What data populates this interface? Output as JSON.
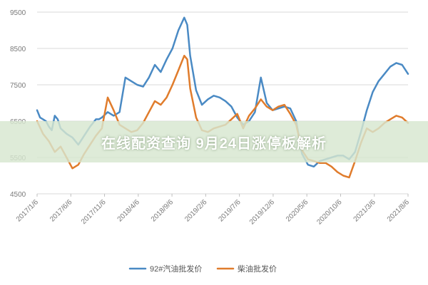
{
  "chart_data": {
    "type": "line",
    "title": "",
    "xlabel": "",
    "ylabel": "",
    "ylim": [
      4500,
      9500
    ],
    "yticks": [
      4500,
      5500,
      6500,
      7500,
      8500,
      9500
    ],
    "xticks": [
      "2017/1/6",
      "2017/6/6",
      "2017/11/6",
      "2018/4/6",
      "2018/9/6",
      "2019/2/6",
      "2019/7/6",
      "2019/12/6",
      "2020/5/6",
      "2020/10/6",
      "2021/3/6",
      "2021/8/6"
    ],
    "grid": true,
    "legend_position": "bottom",
    "x_unit": "months since 2017/1",
    "series": [
      {
        "name": "92#汽油批发价",
        "color": "#4a8ac4",
        "points": [
          [
            0,
            6800
          ],
          [
            0.5,
            6600
          ],
          [
            1,
            6550
          ],
          [
            1.5,
            6500
          ],
          [
            2,
            6350
          ],
          [
            2.5,
            6250
          ],
          [
            3,
            6650
          ],
          [
            3.5,
            6550
          ],
          [
            4,
            6300
          ],
          [
            5,
            6150
          ],
          [
            6,
            6050
          ],
          [
            7,
            5850
          ],
          [
            8,
            6100
          ],
          [
            9,
            6350
          ],
          [
            10,
            6550
          ],
          [
            10.5,
            6550
          ],
          [
            11,
            6600
          ],
          [
            12,
            6750
          ],
          [
            13,
            6650
          ],
          [
            14,
            6750
          ],
          [
            15,
            7700
          ],
          [
            16,
            7600
          ],
          [
            17,
            7500
          ],
          [
            18,
            7450
          ],
          [
            19,
            7700
          ],
          [
            20,
            8050
          ],
          [
            21,
            7850
          ],
          [
            22,
            8200
          ],
          [
            23,
            8500
          ],
          [
            24,
            9000
          ],
          [
            25,
            9350
          ],
          [
            25.5,
            9150
          ],
          [
            26,
            8300
          ],
          [
            27,
            7350
          ],
          [
            28,
            6950
          ],
          [
            29,
            7100
          ],
          [
            30,
            7200
          ],
          [
            31,
            7150
          ],
          [
            32,
            7050
          ],
          [
            33,
            6900
          ],
          [
            34,
            6600
          ],
          [
            35,
            6400
          ],
          [
            36,
            6500
          ],
          [
            37,
            6750
          ],
          [
            38,
            7700
          ],
          [
            39,
            7000
          ],
          [
            40,
            6800
          ],
          [
            41,
            6850
          ],
          [
            42,
            6900
          ],
          [
            43,
            6850
          ],
          [
            44,
            6500
          ],
          [
            45,
            5600
          ],
          [
            46,
            5300
          ],
          [
            47,
            5250
          ],
          [
            48,
            5400
          ],
          [
            49,
            5450
          ],
          [
            50,
            5500
          ],
          [
            51,
            5550
          ],
          [
            52,
            5550
          ],
          [
            53,
            5450
          ],
          [
            54,
            5650
          ],
          [
            55,
            6200
          ],
          [
            56,
            6800
          ],
          [
            57,
            7300
          ],
          [
            58,
            7600
          ],
          [
            59,
            7800
          ],
          [
            60,
            8000
          ],
          [
            61,
            8100
          ],
          [
            62,
            8050
          ],
          [
            63,
            7800
          ]
        ]
      },
      {
        "name": "柴油批发价",
        "color": "#e07c2c",
        "points": [
          [
            0,
            6500
          ],
          [
            1,
            6150
          ],
          [
            2,
            5950
          ],
          [
            3,
            5650
          ],
          [
            4,
            5800
          ],
          [
            5,
            5500
          ],
          [
            6,
            5200
          ],
          [
            7,
            5300
          ],
          [
            8,
            5600
          ],
          [
            9,
            5850
          ],
          [
            10,
            6100
          ],
          [
            11,
            6300
          ],
          [
            12,
            7150
          ],
          [
            13,
            6800
          ],
          [
            14,
            6400
          ],
          [
            15,
            6300
          ],
          [
            16,
            6200
          ],
          [
            17,
            6250
          ],
          [
            18,
            6450
          ],
          [
            19,
            6750
          ],
          [
            20,
            7050
          ],
          [
            21,
            6950
          ],
          [
            22,
            7150
          ],
          [
            23,
            7500
          ],
          [
            24,
            7900
          ],
          [
            25,
            8300
          ],
          [
            25.5,
            8200
          ],
          [
            26,
            7400
          ],
          [
            27,
            6600
          ],
          [
            28,
            6250
          ],
          [
            29,
            6200
          ],
          [
            30,
            6300
          ],
          [
            31,
            6350
          ],
          [
            32,
            6400
          ],
          [
            33,
            6550
          ],
          [
            34,
            6700
          ],
          [
            35,
            6300
          ],
          [
            36,
            6650
          ],
          [
            37,
            6850
          ],
          [
            38,
            7100
          ],
          [
            39,
            6900
          ],
          [
            40,
            6800
          ],
          [
            41,
            6900
          ],
          [
            42,
            6950
          ],
          [
            43,
            6700
          ],
          [
            44,
            6400
          ],
          [
            45,
            5700
          ],
          [
            46,
            5450
          ],
          [
            47,
            5400
          ],
          [
            48,
            5350
          ],
          [
            49,
            5350
          ],
          [
            50,
            5250
          ],
          [
            51,
            5100
          ],
          [
            52,
            5000
          ],
          [
            53,
            4950
          ],
          [
            54,
            5400
          ],
          [
            55,
            5900
          ],
          [
            56,
            6300
          ],
          [
            57,
            6200
          ],
          [
            58,
            6300
          ],
          [
            59,
            6450
          ],
          [
            60,
            6550
          ],
          [
            61,
            6650
          ],
          [
            62,
            6600
          ],
          [
            63,
            6450
          ]
        ]
      }
    ]
  },
  "banner": {
    "text": "在线配资查询 9月24日涨停板解析"
  }
}
